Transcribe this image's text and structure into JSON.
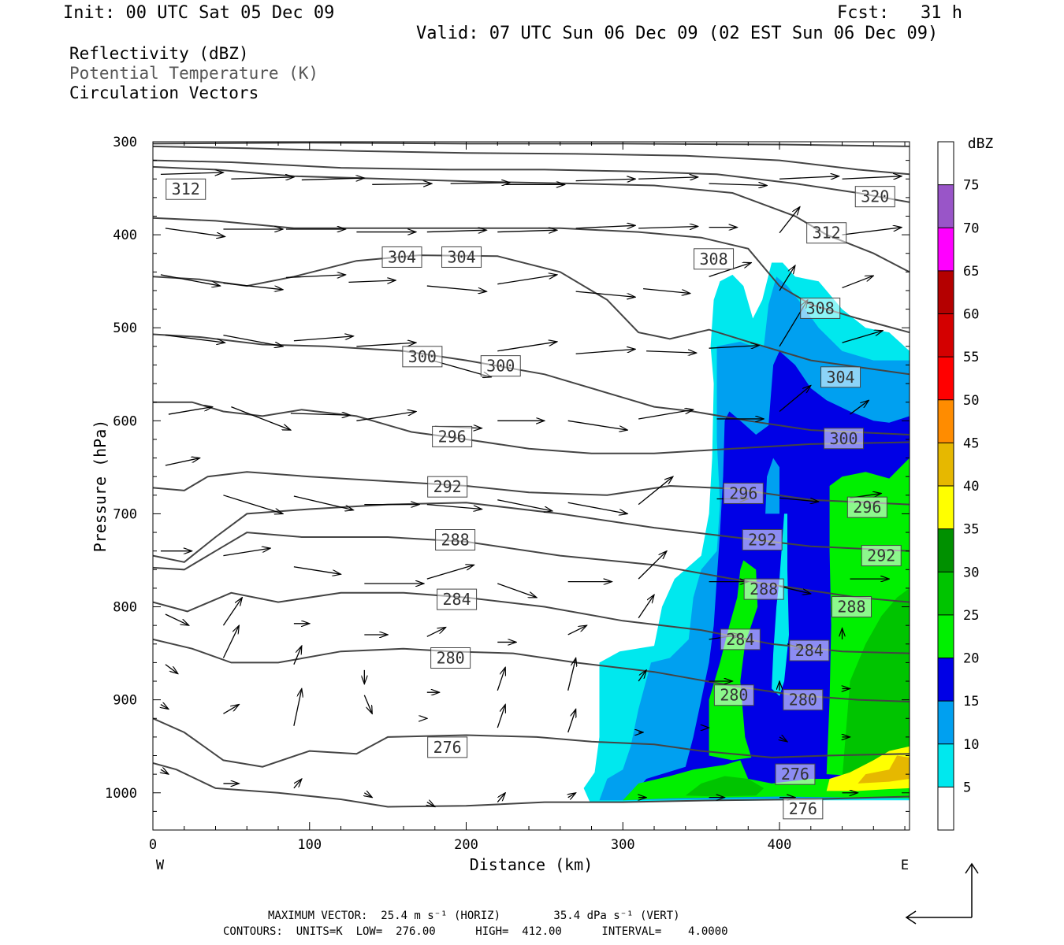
{
  "header": {
    "init": "Init: 00 UTC Sat 05 Dec 09",
    "fcst": "Fcst:   31 h",
    "valid": "Valid: 07 UTC Sun 06 Dec 09 (02 EST Sun 06 Dec 09)"
  },
  "legend": {
    "reflectivity": "Reflectivity (dBZ)",
    "theta": "Potential Temperature (K)",
    "circulation": "Circulation Vectors"
  },
  "footer": {
    "max_vector": "MAXIMUM VECTOR:  25.4 m s⁻¹ (HORIZ)        35.4 dPa s⁻¹ (VERT)",
    "contours": "CONTOURS:  UNITS=K  LOW=  276.00      HIGH=  412.00      INTERVAL=    4.0000"
  },
  "chart_data": {
    "type": "contour",
    "xlabel": "Distance (km)",
    "ylabel": "Pressure (hPa)",
    "xlim": [
      0,
      483
    ],
    "ylim": [
      1040,
      300
    ],
    "x_ticks": [
      0,
      100,
      200,
      300,
      400
    ],
    "y_ticks": [
      300,
      400,
      500,
      600,
      700,
      800,
      900,
      1000
    ],
    "x_end_labels": {
      "left": "W",
      "right": "E"
    },
    "colorbar": {
      "title": "dBZ",
      "levels": [
        5,
        10,
        15,
        20,
        25,
        30,
        35,
        40,
        45,
        50,
        55,
        60,
        65,
        70,
        75
      ],
      "colors": [
        "#ffffff",
        "#00e8ee",
        "#00a0f0",
        "#0000e6",
        "#00f000",
        "#00c400",
        "#009000",
        "#ffff00",
        "#e6b800",
        "#ff8c00",
        "#ff0000",
        "#d40000",
        "#b40000",
        "#ff00ff",
        "#9955c8",
        "#ffffff"
      ]
    },
    "theta_contours": [
      {
        "label": "276",
        "label_at": [
          [
            188,
            951
          ],
          [
            410,
            980
          ],
          [
            415,
            1017
          ]
        ]
      },
      {
        "label": "280",
        "label_at": [
          [
            190,
            855
          ],
          [
            371,
            895
          ],
          [
            415,
            900
          ]
        ]
      },
      {
        "label": "284",
        "label_at": [
          [
            194,
            792
          ],
          [
            375,
            835
          ],
          [
            419,
            847
          ]
        ]
      },
      {
        "label": "288",
        "label_at": [
          [
            193,
            728
          ],
          [
            390,
            781
          ],
          [
            446,
            800
          ]
        ]
      },
      {
        "label": "292",
        "label_at": [
          [
            188,
            671
          ],
          [
            389,
            728
          ],
          [
            465,
            745
          ]
        ]
      },
      {
        "label": "296",
        "label_at": [
          [
            191,
            617
          ],
          [
            377,
            678
          ],
          [
            456,
            693
          ]
        ]
      },
      {
        "label": "300",
        "label_at": [
          [
            172,
            531
          ],
          [
            222,
            541
          ],
          [
            441,
            619
          ]
        ]
      },
      {
        "label": "304",
        "label_at": [
          [
            159,
            424
          ],
          [
            197,
            424
          ],
          [
            439,
            553
          ]
        ]
      },
      {
        "label": "308",
        "label_at": [
          [
            358,
            426
          ],
          [
            426,
            479
          ]
        ]
      },
      {
        "label": "312",
        "label_at": [
          [
            21,
            351
          ],
          [
            430,
            398
          ]
        ]
      },
      {
        "label": "320",
        "label_at": [
          [
            461,
            359
          ]
        ]
      }
    ],
    "reflectivity_regions": [
      {
        "dBZ_min": 5,
        "x_range": [
          280,
          483
        ],
        "p_range": [
          430,
          1010
        ]
      },
      {
        "dBZ_min": 10,
        "x_range": [
          300,
          483
        ],
        "p_range": [
          445,
          1010
        ]
      },
      {
        "dBZ_min": 15,
        "x_range": [
          345,
          483
        ],
        "p_range": [
          520,
          1000
        ]
      },
      {
        "dBZ_min": 20,
        "x_range": [
          300,
          483
        ],
        "p_range": [
          640,
          1010
        ]
      },
      {
        "dBZ_min": 25,
        "x_range": [
          340,
          483
        ],
        "p_range": [
          800,
          1005
        ]
      },
      {
        "dBZ_min": 35,
        "x_range": [
          430,
          483
        ],
        "p_range": [
          960,
          995
        ]
      }
    ]
  }
}
